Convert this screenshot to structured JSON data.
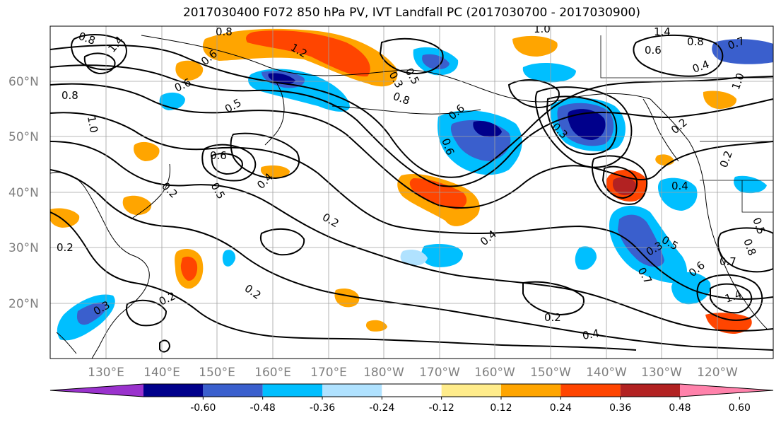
{
  "title": "2017030400 F072 850 hPa PV, IVT Landfall PC (2017030700 - 2017030900)",
  "latitude_labels": [
    "60°N",
    "50°N",
    "40°N",
    "30°N",
    "20°N"
  ],
  "longitude_labels": [
    "130°E",
    "140°E",
    "150°E",
    "160°E",
    "170°E",
    "180°W",
    "170°W",
    "160°W",
    "150°W",
    "140°W",
    "130°W",
    "120°W"
  ],
  "colorbar": {
    "ticks": [
      "-0.60",
      "-0.48",
      "-0.36",
      "-0.24",
      "-0.12",
      "0.12",
      "0.24",
      "0.36",
      "0.48",
      "0.60"
    ],
    "colors": [
      "#9a32cd",
      "#00008b",
      "#3a5fcd",
      "#00bfff",
      "#b0e2ff",
      "#ffffff",
      "#ffec8b",
      "#ffa500",
      "#ff4500",
      "#b22222",
      "#ff82ab"
    ]
  },
  "contour_labels": [
    "0.8",
    "0.8",
    "1.2",
    "1.4",
    "1.0",
    "1.4",
    "0.6",
    "0.8",
    "0.7",
    "0.4",
    "0.6",
    "0.8",
    "0.6",
    "1.0",
    "0.5",
    "0.3",
    "0.8",
    "0.5",
    "0.6",
    "0.6",
    "0.3",
    "0.2",
    "0.6",
    "0.2",
    "0.5",
    "0.4",
    "0.2",
    "0.2",
    "0.4",
    "0.2",
    "0.3",
    "0.2",
    "0.2",
    "0.2",
    "0.4",
    "0.5",
    "0.3",
    "0.7",
    "0.6",
    "0.7",
    "1.4",
    "0.8",
    "0.5",
    "1.0",
    "0.4"
  ]
}
